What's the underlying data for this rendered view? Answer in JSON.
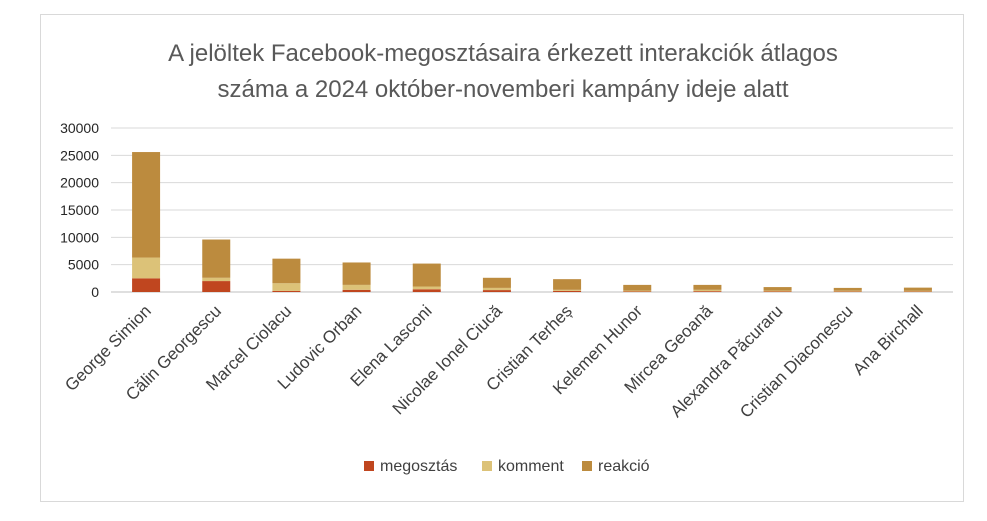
{
  "chart_data": {
    "type": "bar",
    "stacked": true,
    "title_lines": [
      "A jelöltek Facebook-megosztásaira érkezett interakciók átlagos",
      "száma a 2024 október-novemberi kampány ideje alatt"
    ],
    "xlabel": "",
    "ylabel": "",
    "ylim": [
      0,
      30000
    ],
    "yticks": [
      0,
      5000,
      10000,
      15000,
      20000,
      25000,
      30000
    ],
    "grid": true,
    "legend_position": "bottom",
    "categories": [
      "George Simion",
      "Călin Georgescu",
      "Marcel Ciolacu",
      "Ludovic Orban",
      "Elena Lasconi",
      "Nicolae Ionel Ciucă",
      "Cristian Terheș",
      "Kelemen Hunor",
      "Mircea Geoană",
      "Alexandra Păcuraru",
      "Cristian Diaconescu",
      "Ana Birchall"
    ],
    "series": [
      {
        "name": "megosztás",
        "color": "#C0461F",
        "values": [
          2500,
          2000,
          200,
          400,
          500,
          350,
          200,
          100,
          150,
          100,
          80,
          80
        ]
      },
      {
        "name": "komment",
        "color": "#DCC278",
        "values": [
          3800,
          600,
          1400,
          900,
          500,
          400,
          200,
          150,
          250,
          150,
          150,
          130
        ]
      },
      {
        "name": "reakció",
        "color": "#BC8B3E",
        "values": [
          19300,
          7000,
          4500,
          4100,
          4200,
          1850,
          1950,
          1050,
          900,
          650,
          520,
          590
        ]
      }
    ]
  }
}
